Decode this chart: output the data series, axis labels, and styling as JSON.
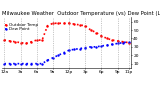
{
  "title": "Milwaukee Weather  Outdoor Temperature (vs) Dew Point (Last 24 Hours)",
  "legend": [
    "Outdoor Temp",
    "Dew Point"
  ],
  "line_colors": [
    "red",
    "blue"
  ],
  "temp_values": [
    38,
    37,
    36,
    35,
    34,
    36,
    38,
    38,
    55,
    58,
    58,
    58,
    58,
    57,
    56,
    55,
    50,
    47,
    43,
    40,
    38,
    37,
    36,
    35
  ],
  "dew_values": [
    10,
    10,
    10,
    10,
    10,
    10,
    10,
    10,
    14,
    17,
    20,
    23,
    26,
    27,
    28,
    29,
    30,
    30,
    31,
    32,
    33,
    34,
    35,
    36
  ],
  "x_ticks_pos": [
    0,
    3,
    6,
    9,
    12,
    15,
    18,
    21,
    23
  ],
  "x_tick_labels": [
    "12a",
    "3a",
    "6a",
    "9a",
    "12p",
    "3p",
    "6p",
    "9p",
    "11p"
  ],
  "ylim": [
    5,
    65
  ],
  "yticks": [
    10,
    20,
    30,
    40,
    50,
    60
  ],
  "ytick_labels": [
    "10",
    "20",
    "30",
    "40",
    "50",
    "60"
  ],
  "grid_positions": [
    0,
    3,
    6,
    9,
    12,
    15,
    18,
    21,
    23
  ],
  "background_color": "#ffffff",
  "title_fontsize": 3.8,
  "tick_fontsize": 3.2,
  "legend_fontsize": 3.0,
  "linewidth": 1.2,
  "markersize": 1.5,
  "marker": "o"
}
